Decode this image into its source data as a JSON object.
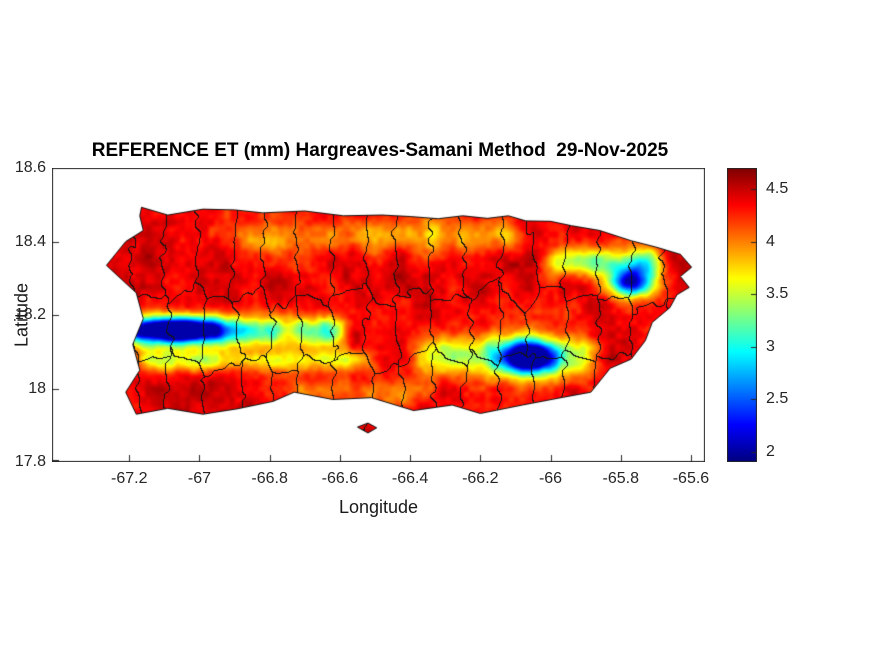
{
  "chart_data": {
    "type": "heatmap",
    "title": "REFERENCE ET (mm) Hargreaves-Samani Method  29-Nov-2025",
    "xlabel": "Longitude",
    "ylabel": "Latitude",
    "xlim": [
      -67.42,
      -65.56
    ],
    "ylim": [
      17.8,
      18.6
    ],
    "xticks": [
      -67.2,
      -67,
      -66.8,
      -66.6,
      -66.4,
      -66.2,
      -66,
      -65.8,
      -65.6
    ],
    "xtick_labels": [
      "-67.2",
      "-67",
      "-66.8",
      "-66.6",
      "-66.4",
      "-66.2",
      "-66",
      "-65.8",
      "-65.6"
    ],
    "yticks": [
      17.8,
      18,
      18.2,
      18.4,
      18.6
    ],
    "ytick_labels": [
      "17.8",
      "18",
      "18.2",
      "18.4",
      "18.6"
    ],
    "grid": false,
    "colormap": "jet",
    "colorbar": {
      "position": "right",
      "min": 1.9,
      "max": 4.7,
      "ticks": [
        2,
        2.5,
        3,
        3.5,
        4,
        4.5
      ],
      "tick_labels": [
        "2",
        "2.5",
        "3",
        "3.5",
        "4",
        "4.5"
      ]
    },
    "value_field": {
      "units": "mm",
      "base_value": 4.4,
      "noise_amplitude": 0.26,
      "low_zones": [
        {
          "kind": "band",
          "lat": 18.155,
          "lon_min": -67.27,
          "lon_max": -66.55,
          "sigma": 0.03,
          "amp": 1.45
        },
        {
          "kind": "spot",
          "lon": -67.06,
          "lat": 18.16,
          "sx": 0.1,
          "sy": 0.024,
          "amp": 2.1
        },
        {
          "kind": "band",
          "lat": 18.075,
          "lon_min": -67.22,
          "lon_max": -66.48,
          "sigma": 0.022,
          "amp": 1.0
        },
        {
          "kind": "band",
          "lat": 18.09,
          "lon_min": -66.42,
          "lon_max": -65.82,
          "sigma": 0.042,
          "amp": 1.25
        },
        {
          "kind": "spot",
          "lon": -66.06,
          "lat": 18.085,
          "sx": 0.055,
          "sy": 0.03,
          "amp": 2.2
        },
        {
          "kind": "band",
          "lat": 18.345,
          "lon_min": -66.05,
          "lon_max": -65.64,
          "sigma": 0.027,
          "amp": 1.2
        },
        {
          "kind": "spot",
          "lon": -65.77,
          "lat": 18.29,
          "sx": 0.045,
          "sy": 0.028,
          "amp": 2.3
        },
        {
          "kind": "band",
          "lat": 18.415,
          "lon_min": -66.95,
          "lon_max": -66.02,
          "sigma": 0.034,
          "amp": 0.55
        },
        {
          "kind": "band",
          "lat": 17.99,
          "lon_min": -66.78,
          "lon_max": -66.3,
          "sigma": 0.026,
          "amp": 0.45
        }
      ]
    },
    "region": {
      "outline": [
        [
          -67.165,
          18.493
        ],
        [
          -67.09,
          18.472
        ],
        [
          -66.99,
          18.488
        ],
        [
          -66.9,
          18.486
        ],
        [
          -66.82,
          18.478
        ],
        [
          -66.7,
          18.483
        ],
        [
          -66.59,
          18.47
        ],
        [
          -66.48,
          18.472
        ],
        [
          -66.4,
          18.468
        ],
        [
          -66.32,
          18.462
        ],
        [
          -66.25,
          18.47
        ],
        [
          -66.18,
          18.463
        ],
        [
          -66.12,
          18.47
        ],
        [
          -66.07,
          18.456
        ],
        [
          -66.0,
          18.455
        ],
        [
          -65.94,
          18.443
        ],
        [
          -65.86,
          18.43
        ],
        [
          -65.77,
          18.402
        ],
        [
          -65.7,
          18.385
        ],
        [
          -65.63,
          18.365
        ],
        [
          -65.598,
          18.33
        ],
        [
          -65.63,
          18.305
        ],
        [
          -65.605,
          18.275
        ],
        [
          -65.64,
          18.255
        ],
        [
          -65.66,
          18.22
        ],
        [
          -65.71,
          18.18
        ],
        [
          -65.73,
          18.13
        ],
        [
          -65.77,
          18.08
        ],
        [
          -65.83,
          18.055
        ],
        [
          -65.885,
          17.99
        ],
        [
          -65.97,
          17.975
        ],
        [
          -66.08,
          17.955
        ],
        [
          -66.2,
          17.932
        ],
        [
          -66.28,
          17.955
        ],
        [
          -66.39,
          17.94
        ],
        [
          -66.51,
          17.975
        ],
        [
          -66.62,
          17.97
        ],
        [
          -66.73,
          17.99
        ],
        [
          -66.79,
          17.965
        ],
        [
          -66.89,
          17.945
        ],
        [
          -66.99,
          17.93
        ],
        [
          -67.09,
          17.946
        ],
        [
          -67.18,
          17.93
        ],
        [
          -67.21,
          17.99
        ],
        [
          -67.17,
          18.05
        ],
        [
          -67.19,
          18.12
        ],
        [
          -67.16,
          18.19
        ],
        [
          -67.18,
          18.26
        ],
        [
          -67.265,
          18.335
        ],
        [
          -67.21,
          18.4
        ],
        [
          -67.16,
          18.43
        ],
        [
          -67.17,
          18.47
        ]
      ],
      "islets": [
        [
          [
            -66.55,
            17.895
          ],
          [
            -66.52,
            17.906
          ],
          [
            -66.495,
            17.893
          ],
          [
            -66.52,
            17.879
          ]
        ]
      ]
    },
    "boundaries": {
      "style": "municipal",
      "color": "#141414"
    }
  }
}
